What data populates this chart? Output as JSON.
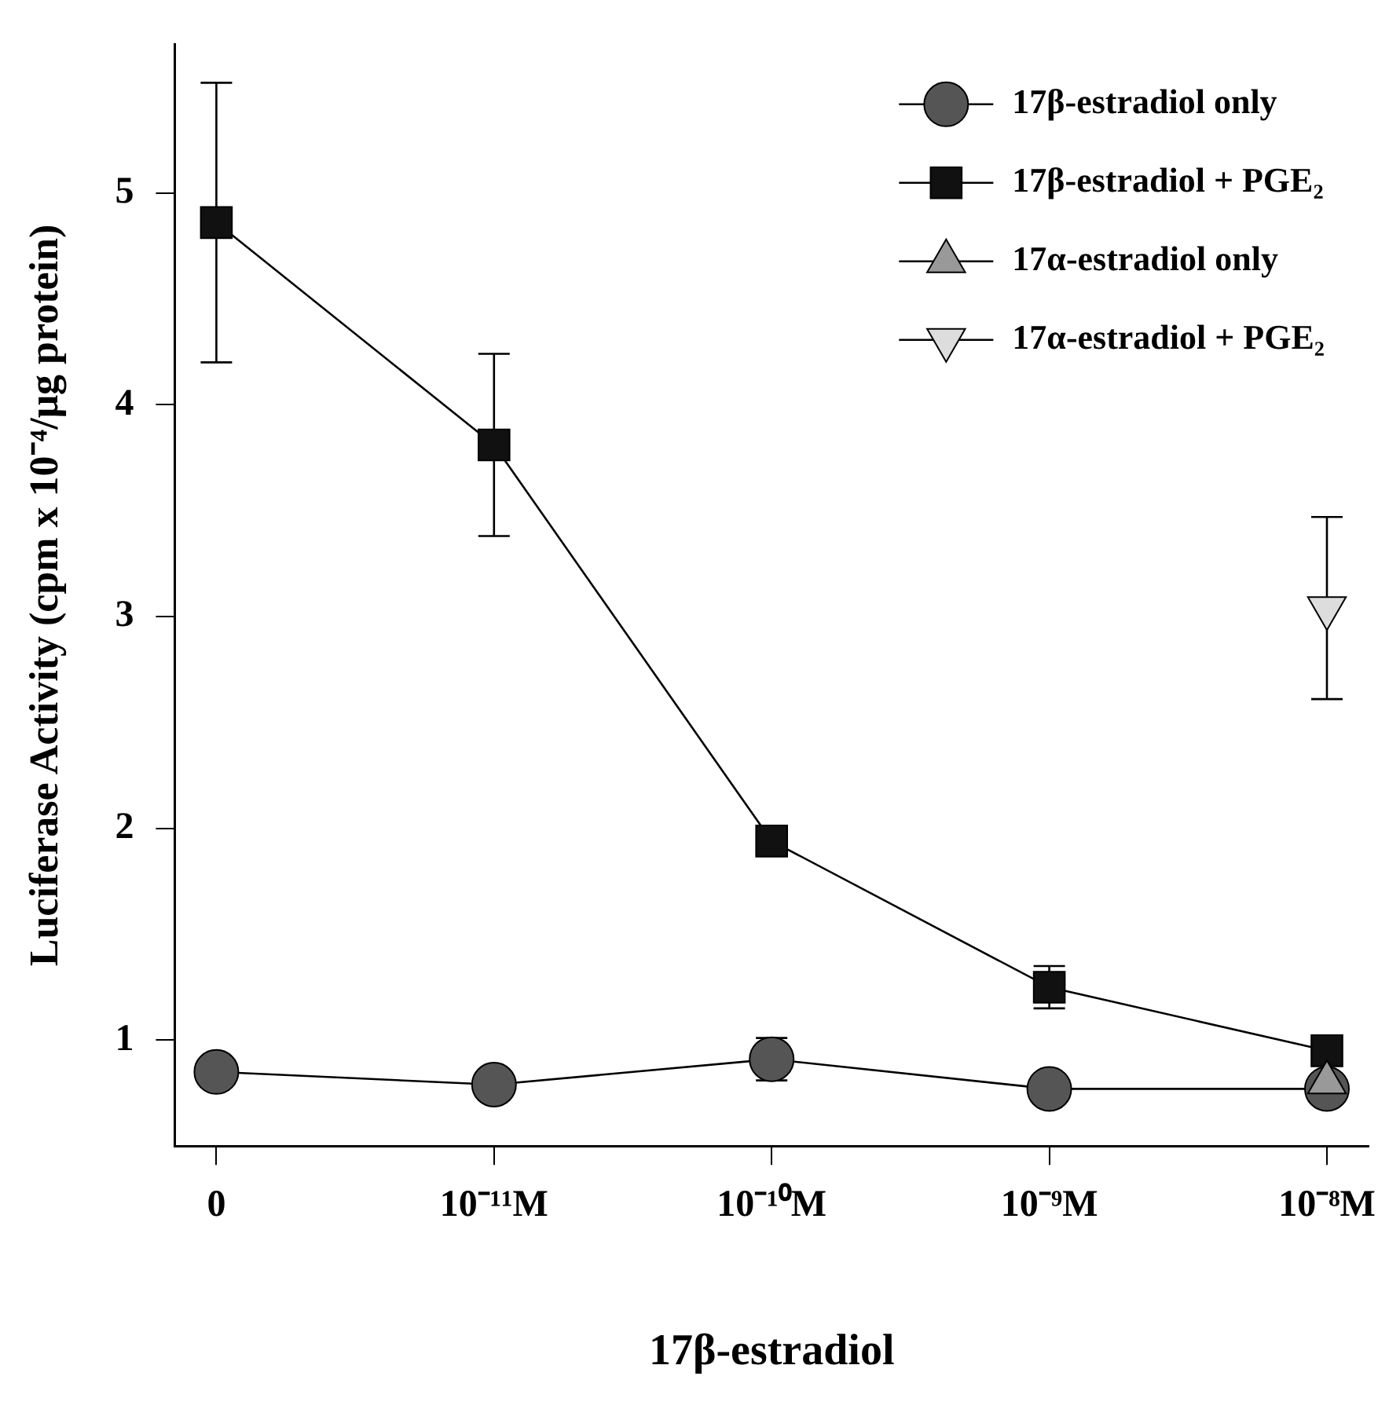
{
  "chart_data": {
    "type": "line",
    "xlabel": "17β-estradiol",
    "ylabel": "Luciferase Activity (cpm x 10⁻⁴/μg protein)",
    "categories": [
      "0",
      "10⁻¹¹M",
      "10⁻¹⁰M",
      "10⁻⁹M",
      "10⁻⁸M"
    ],
    "ylim": [
      0.5,
      5.7
    ],
    "yticks": [
      1,
      2,
      3,
      4,
      5
    ],
    "grid": false,
    "legend": "top right",
    "series": [
      {
        "name": "17β-estradiol only",
        "color": "#555555",
        "marker": "circle",
        "values": [
          0.85,
          0.79,
          0.91,
          0.77,
          0.77
        ],
        "errors": [
          null,
          null,
          0.1,
          null,
          null
        ]
      },
      {
        "name": "17β-estradiol + PGE₂",
        "color": "#111111",
        "marker": "square",
        "values": [
          4.86,
          3.81,
          1.94,
          1.25,
          0.95
        ],
        "errors": [
          0.66,
          0.43,
          null,
          0.1,
          null
        ]
      },
      {
        "name": "17α-estradiol only",
        "color": "#999999",
        "marker": "triangle",
        "values": [
          null,
          null,
          null,
          null,
          0.8
        ]
      },
      {
        "name": "17α-estradiol + PGE₂",
        "color": "#dddddd",
        "marker": "triangle-down",
        "values": [
          null,
          null,
          null,
          null,
          3.04
        ],
        "errors": [
          null,
          null,
          null,
          null,
          0.43
        ]
      }
    ]
  }
}
